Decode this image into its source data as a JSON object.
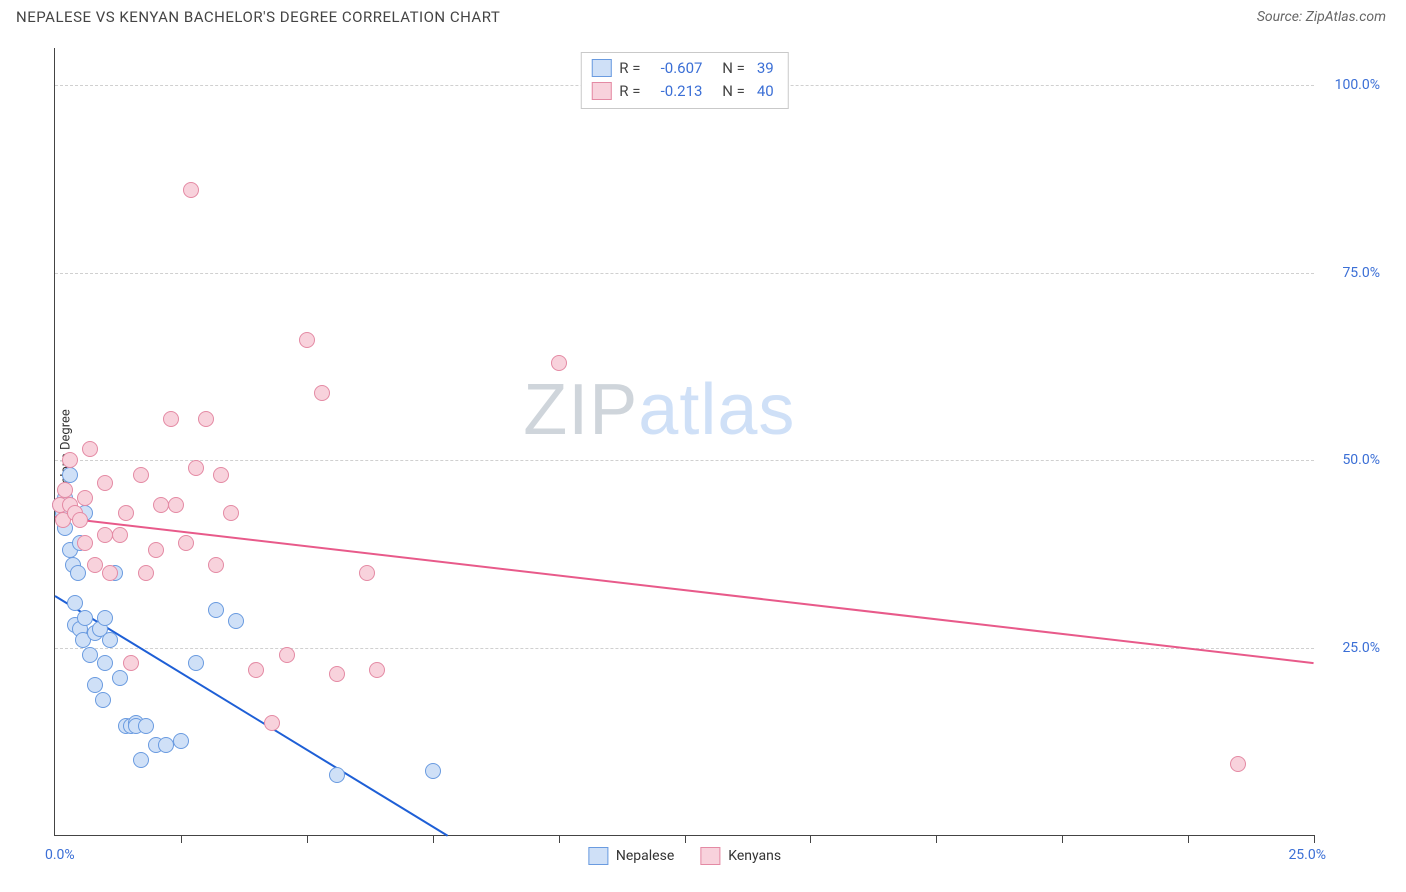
{
  "header": {
    "title": "NEPALESE VS KENYAN BACHELOR'S DEGREE CORRELATION CHART",
    "source_prefix": "Source:",
    "source_name": "ZipAtlas.com"
  },
  "chart": {
    "type": "scatter",
    "ylabel": "Bachelor's Degree",
    "xlim": [
      0,
      25
    ],
    "ylim": [
      0,
      105
    ],
    "x_origin_label": "0.0%",
    "x_max_label": "25.0%",
    "xtick_positions": [
      2.5,
      5,
      7.5,
      10,
      12.5,
      15,
      17.5,
      20,
      22.5,
      25
    ],
    "yticks": [
      {
        "v": 25,
        "label": "25.0%"
      },
      {
        "v": 50,
        "label": "50.0%"
      },
      {
        "v": 75,
        "label": "75.0%"
      },
      {
        "v": 100,
        "label": "100.0%"
      }
    ],
    "grid_color": "#d5d5d5",
    "background_color": "#ffffff",
    "marker_radius": 8,
    "marker_border_width": 1.5,
    "series": [
      {
        "name": "Nepalese",
        "fill": "#cfe0f7",
        "stroke": "#6a9be0",
        "trend_color": "#1e5fd6",
        "trend": {
          "x1": 0,
          "y1": 32,
          "x2": 7.8,
          "y2": 0
        },
        "R": "-0.607",
        "N": "39",
        "points": [
          [
            0.1,
            44
          ],
          [
            0.15,
            43
          ],
          [
            0.2,
            45
          ],
          [
            0.2,
            41
          ],
          [
            0.3,
            48
          ],
          [
            0.3,
            38
          ],
          [
            0.35,
            36
          ],
          [
            0.4,
            31
          ],
          [
            0.4,
            28
          ],
          [
            0.45,
            35
          ],
          [
            0.5,
            39
          ],
          [
            0.5,
            27.5
          ],
          [
            0.55,
            26
          ],
          [
            0.6,
            43
          ],
          [
            0.6,
            29
          ],
          [
            0.7,
            24
          ],
          [
            0.8,
            27
          ],
          [
            0.8,
            20
          ],
          [
            0.9,
            27.5
          ],
          [
            0.95,
            18
          ],
          [
            1.0,
            29
          ],
          [
            1.0,
            23
          ],
          [
            1.1,
            26
          ],
          [
            1.2,
            35
          ],
          [
            1.3,
            21
          ],
          [
            1.4,
            14.5
          ],
          [
            1.5,
            14.5
          ],
          [
            1.6,
            15
          ],
          [
            1.6,
            14.5
          ],
          [
            1.7,
            10
          ],
          [
            1.8,
            14.5
          ],
          [
            2.0,
            12
          ],
          [
            2.2,
            12
          ],
          [
            2.5,
            12.5
          ],
          [
            2.8,
            23
          ],
          [
            3.2,
            30
          ],
          [
            3.6,
            28.5
          ],
          [
            5.6,
            8
          ],
          [
            7.5,
            8.5
          ]
        ]
      },
      {
        "name": "Kenyans",
        "fill": "#f8d2dc",
        "stroke": "#e48aa4",
        "trend_color": "#e85a8a",
        "trend": {
          "x1": 0,
          "y1": 42.5,
          "x2": 25,
          "y2": 23
        },
        "R": "-0.213",
        "N": "40",
        "points": [
          [
            0.1,
            44
          ],
          [
            0.15,
            42
          ],
          [
            0.2,
            46
          ],
          [
            0.3,
            50
          ],
          [
            0.3,
            44
          ],
          [
            0.4,
            43
          ],
          [
            0.5,
            42
          ],
          [
            0.6,
            39
          ],
          [
            0.6,
            45
          ],
          [
            0.7,
            51.5
          ],
          [
            0.8,
            36
          ],
          [
            1.0,
            47
          ],
          [
            1.0,
            40
          ],
          [
            1.1,
            35
          ],
          [
            1.3,
            40
          ],
          [
            1.4,
            43
          ],
          [
            1.5,
            23
          ],
          [
            1.7,
            48
          ],
          [
            1.8,
            35
          ],
          [
            2.1,
            44
          ],
          [
            2.0,
            38
          ],
          [
            2.3,
            55.5
          ],
          [
            2.4,
            44
          ],
          [
            2.6,
            39
          ],
          [
            2.7,
            86
          ],
          [
            2.8,
            49
          ],
          [
            3.0,
            55.5
          ],
          [
            3.2,
            36
          ],
          [
            3.3,
            48
          ],
          [
            3.5,
            43
          ],
          [
            4.0,
            22
          ],
          [
            4.3,
            15
          ],
          [
            4.6,
            24
          ],
          [
            5.0,
            66
          ],
          [
            5.3,
            59
          ],
          [
            5.6,
            21.5
          ],
          [
            6.2,
            35
          ],
          [
            6.4,
            22
          ],
          [
            10.0,
            63
          ],
          [
            23.5,
            9.5
          ]
        ]
      }
    ],
    "legend_box": {
      "R_label": "R =",
      "N_label": "N ="
    },
    "bottom_legend": [
      "Nepalese",
      "Kenyans"
    ],
    "watermark": {
      "part1": "ZIP",
      "part2": "atlas"
    }
  }
}
